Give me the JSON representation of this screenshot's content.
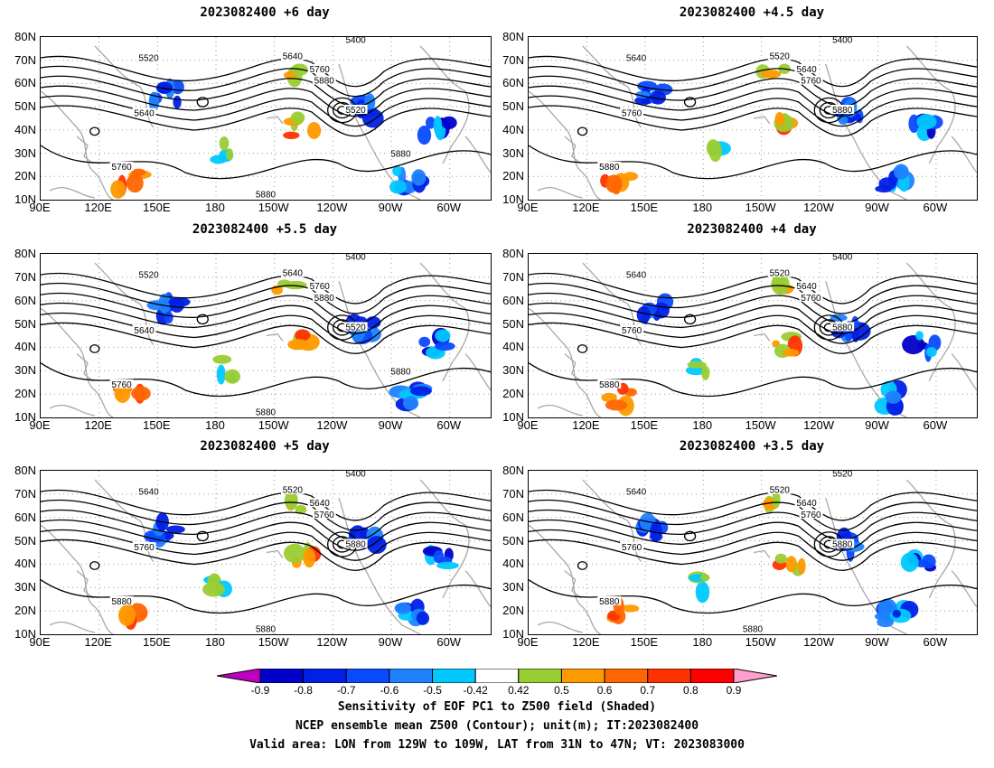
{
  "panels": [
    {
      "title": "2023082400 +6 day"
    },
    {
      "title": "2023082400 +4.5 day"
    },
    {
      "title": "2023082400 +5.5 day"
    },
    {
      "title": "2023082400 +4 day"
    },
    {
      "title": "2023082400 +5 day"
    },
    {
      "title": "2023082400 +3.5 day"
    }
  ],
  "lat_labels": [
    "80N",
    "70N",
    "60N",
    "50N",
    "40N",
    "30N",
    "20N",
    "10N"
  ],
  "lon_labels": [
    "90E",
    "120E",
    "150E",
    "180",
    "150W",
    "120W",
    "90W",
    "60W"
  ],
  "contour_labels": {
    "p0": [
      "5400",
      "5520",
      "5640",
      "5760",
      "5880",
      "5520",
      "5640",
      "5760",
      "5880",
      "5880"
    ],
    "p1": [
      "5400",
      "5640",
      "5520",
      "5640",
      "5760",
      "5880",
      "5760",
      "5880"
    ],
    "p2": [
      "5400",
      "5520",
      "5640",
      "5760",
      "5880",
      "5520",
      "5640",
      "5760",
      "5880",
      "5880"
    ],
    "p3": [
      "5400",
      "5640",
      "5520",
      "5640",
      "5760",
      "5880",
      "5760",
      "5880"
    ],
    "p4": [
      "5400",
      "5640",
      "5520",
      "5640",
      "5760",
      "5880",
      "5760",
      "5880",
      "5880"
    ],
    "p5": [
      "5520",
      "5640",
      "5520",
      "5640",
      "5760",
      "5880",
      "5760",
      "5880",
      "5880"
    ]
  },
  "colorbar": {
    "ticks": [
      "-0.9",
      "-0.8",
      "-0.7",
      "-0.6",
      "-0.5",
      "-0.42",
      "0.42",
      "0.5",
      "0.6",
      "0.7",
      "0.8",
      "0.9"
    ],
    "colors": [
      "#c000c0",
      "#0000c8",
      "#0020e6",
      "#0a4aff",
      "#1e82ff",
      "#00c8ff",
      "#ffffff",
      "#9acd32",
      "#ff9900",
      "#ff6600",
      "#ff3300",
      "#ff0000",
      "#ff9ecf"
    ]
  },
  "footer": {
    "line1": "Sensitivity of EOF PC1 to Z500 field (Shaded)",
    "line2": "NCEP ensemble mean Z500 (Contour); unit(m); IT:2023082400",
    "line3": "Valid area: LON from 129W to 109W, LAT from 31N to 47N; VT: 2023083000"
  }
}
